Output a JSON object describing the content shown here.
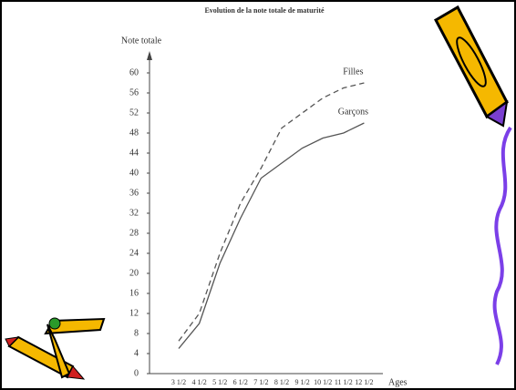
{
  "chart_data": {
    "type": "line",
    "title": "Evolution de la note totale de maturité",
    "y_label": "Note totale",
    "x_label": "Ages",
    "categories": [
      "3 1/2",
      "4 1/2",
      "5 1/2",
      "6 1/2",
      "7 1/2",
      "8 1/2",
      "9 1/2",
      "10 1/2",
      "11 1/2",
      "12 1/2"
    ],
    "series": [
      {
        "name": "Filles",
        "color": "#555555",
        "dashed": true,
        "values": [
          6.5,
          12,
          24,
          34,
          41,
          49,
          52,
          55,
          57,
          58
        ]
      },
      {
        "name": "Garçons",
        "color": "#555555",
        "dashed": false,
        "values": [
          5,
          10,
          22,
          31,
          39,
          42,
          45,
          47,
          48,
          50
        ]
      }
    ],
    "ylim": [
      0,
      60
    ],
    "yticks": [
      0,
      4,
      8,
      12,
      16,
      20,
      24,
      28,
      32,
      36,
      40,
      44,
      48,
      52,
      56,
      60
    ],
    "grid": false
  }
}
